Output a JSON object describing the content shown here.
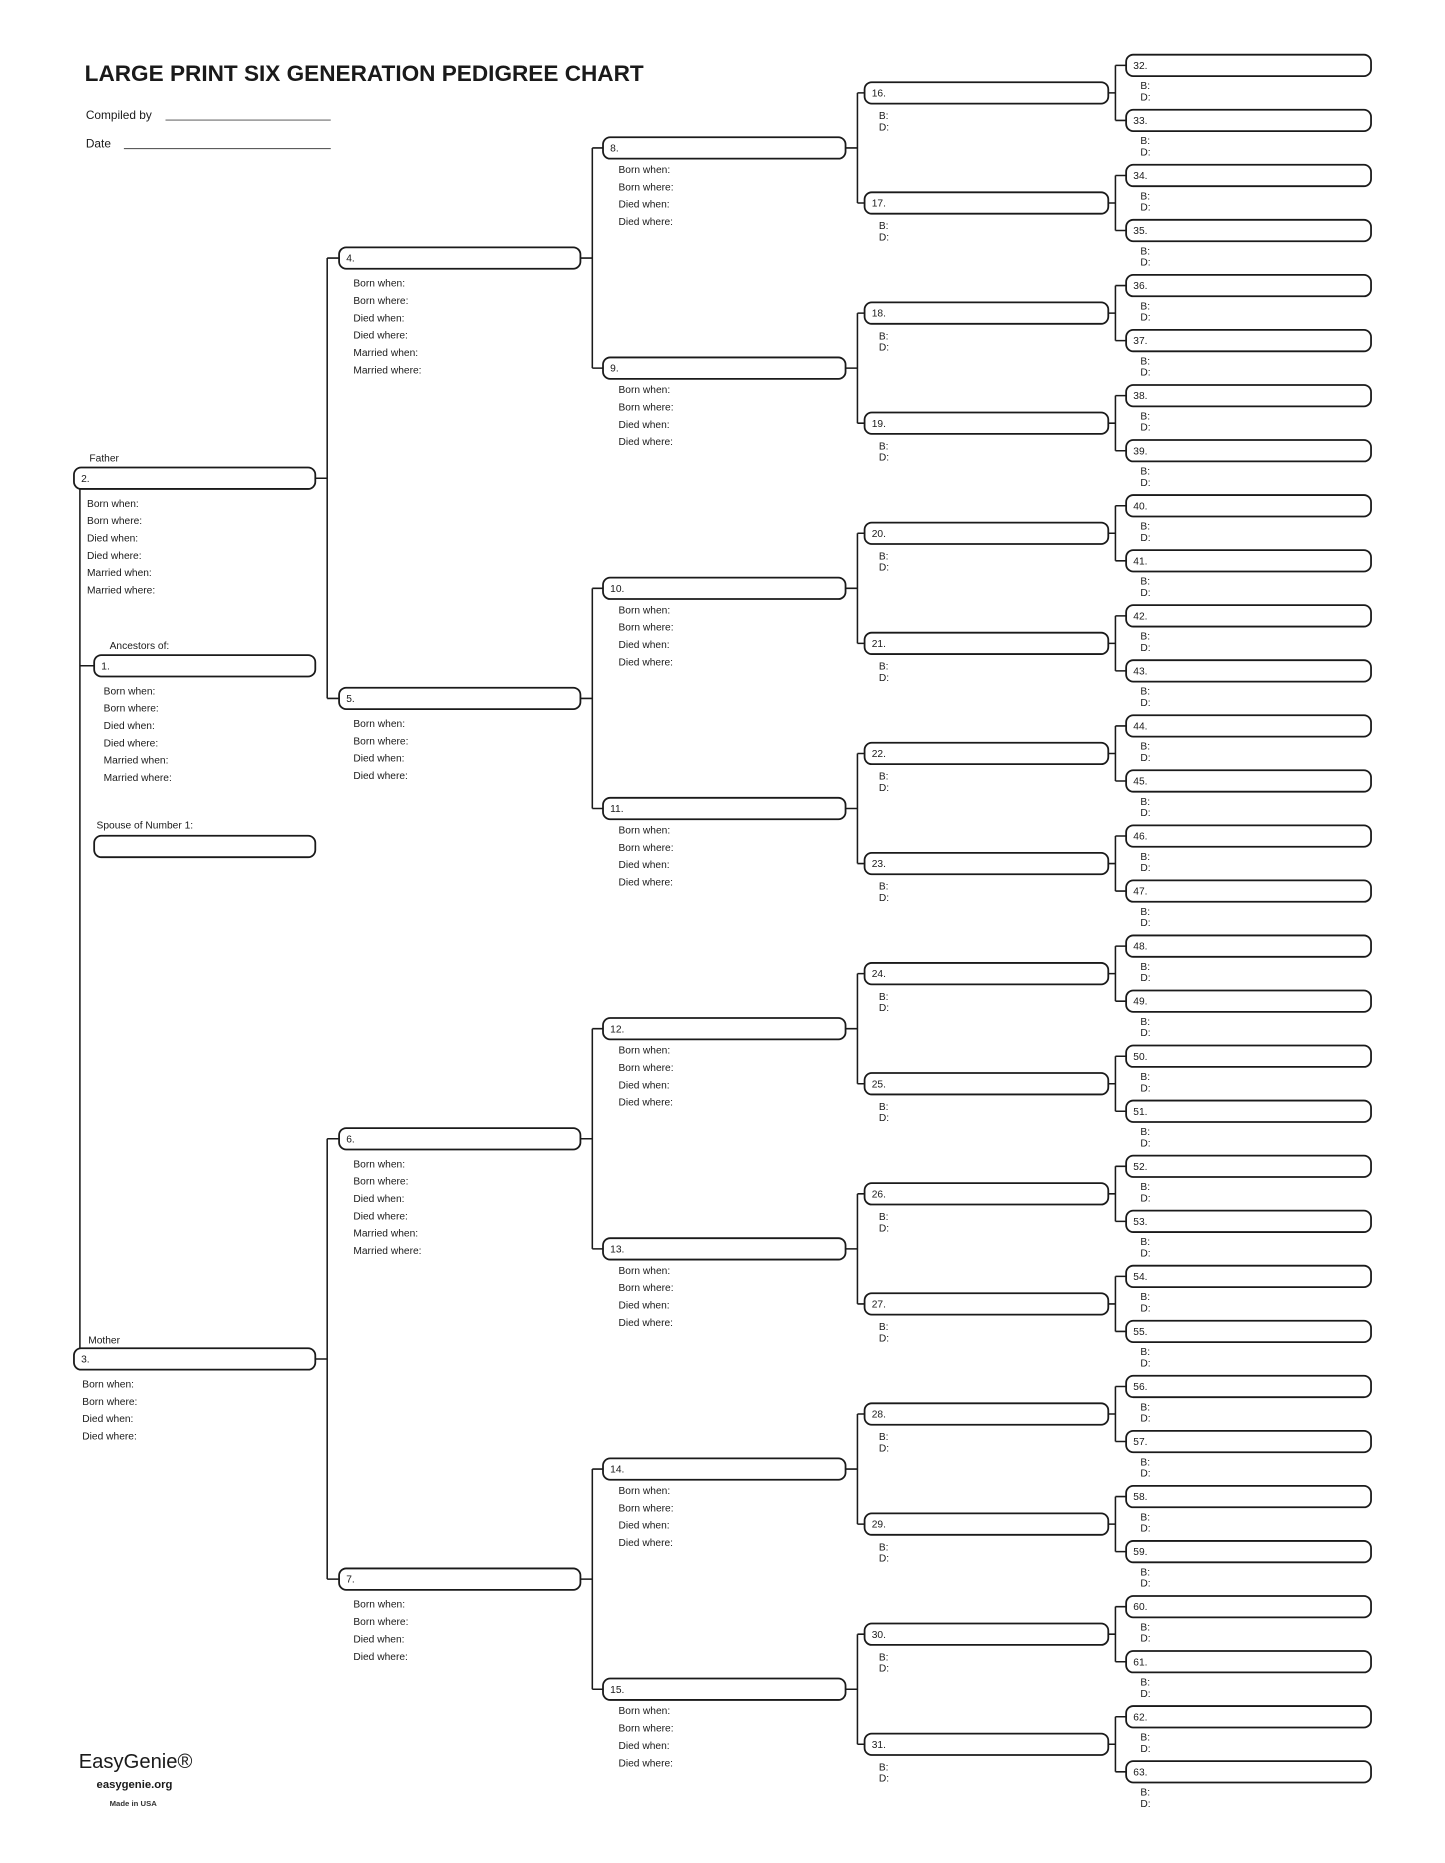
{
  "header": {
    "title": "LARGE PRINT SIX GENERATION PEDIGREE CHART",
    "compiled_by_label": "Compiled by",
    "date_label": "Date"
  },
  "labels": {
    "father": "Father",
    "mother": "Mother",
    "ancestors_of": "Ancestors of:",
    "spouse_of": "Spouse of Number 1:"
  },
  "field_sets": {
    "full": [
      "Born when:",
      "Born where:",
      "Died when:",
      "Died where:",
      "Married when:",
      "Married where:"
    ],
    "short": [
      "Born when:",
      "Born where:",
      "Died when:",
      "Died where:"
    ],
    "bd": [
      "B:",
      "D:"
    ]
  },
  "persons": [
    {
      "num": "1.",
      "fields": "full"
    },
    {
      "num": "2.",
      "fields": "full"
    },
    {
      "num": "3.",
      "fields": "short"
    },
    {
      "num": "4.",
      "fields": "full"
    },
    {
      "num": "5.",
      "fields": "short"
    },
    {
      "num": "6.",
      "fields": "full"
    },
    {
      "num": "7.",
      "fields": "short"
    },
    {
      "num": "8.",
      "fields": "short"
    },
    {
      "num": "9.",
      "fields": "short"
    },
    {
      "num": "10.",
      "fields": "short"
    },
    {
      "num": "11.",
      "fields": "short"
    },
    {
      "num": "12.",
      "fields": "short"
    },
    {
      "num": "13.",
      "fields": "short"
    },
    {
      "num": "14.",
      "fields": "short"
    },
    {
      "num": "15.",
      "fields": "short"
    },
    {
      "num": "16.",
      "fields": "bd"
    },
    {
      "num": "17.",
      "fields": "bd"
    },
    {
      "num": "18.",
      "fields": "bd"
    },
    {
      "num": "19.",
      "fields": "bd"
    },
    {
      "num": "20.",
      "fields": "bd"
    },
    {
      "num": "21.",
      "fields": "bd"
    },
    {
      "num": "22.",
      "fields": "bd"
    },
    {
      "num": "23.",
      "fields": "bd"
    },
    {
      "num": "24.",
      "fields": "bd"
    },
    {
      "num": "25.",
      "fields": "bd"
    },
    {
      "num": "26.",
      "fields": "bd"
    },
    {
      "num": "27.",
      "fields": "bd"
    },
    {
      "num": "28.",
      "fields": "bd"
    },
    {
      "num": "29.",
      "fields": "bd"
    },
    {
      "num": "30.",
      "fields": "bd"
    },
    {
      "num": "31.",
      "fields": "bd"
    },
    {
      "num": "32.",
      "fields": "bd"
    },
    {
      "num": "33.",
      "fields": "bd"
    },
    {
      "num": "34.",
      "fields": "bd"
    },
    {
      "num": "35.",
      "fields": "bd"
    },
    {
      "num": "36.",
      "fields": "bd"
    },
    {
      "num": "37.",
      "fields": "bd"
    },
    {
      "num": "38.",
      "fields": "bd"
    },
    {
      "num": "39.",
      "fields": "bd"
    },
    {
      "num": "40.",
      "fields": "bd"
    },
    {
      "num": "41.",
      "fields": "bd"
    },
    {
      "num": "42.",
      "fields": "bd"
    },
    {
      "num": "43.",
      "fields": "bd"
    },
    {
      "num": "44.",
      "fields": "bd"
    },
    {
      "num": "45.",
      "fields": "bd"
    },
    {
      "num": "46.",
      "fields": "bd"
    },
    {
      "num": "47.",
      "fields": "bd"
    },
    {
      "num": "48.",
      "fields": "bd"
    },
    {
      "num": "49.",
      "fields": "bd"
    },
    {
      "num": "50.",
      "fields": "bd"
    },
    {
      "num": "51.",
      "fields": "bd"
    },
    {
      "num": "52.",
      "fields": "bd"
    },
    {
      "num": "53.",
      "fields": "bd"
    },
    {
      "num": "54.",
      "fields": "bd"
    },
    {
      "num": "55.",
      "fields": "bd"
    },
    {
      "num": "56.",
      "fields": "bd"
    },
    {
      "num": "57.",
      "fields": "bd"
    },
    {
      "num": "58.",
      "fields": "bd"
    },
    {
      "num": "59.",
      "fields": "bd"
    },
    {
      "num": "60.",
      "fields": "bd"
    },
    {
      "num": "61.",
      "fields": "bd"
    },
    {
      "num": "62.",
      "fields": "bd"
    },
    {
      "num": "63.",
      "fields": "bd"
    }
  ],
  "footer": {
    "brand": "EasyGenie®",
    "website": "easygenie.org",
    "made_in": "Made in USA"
  }
}
